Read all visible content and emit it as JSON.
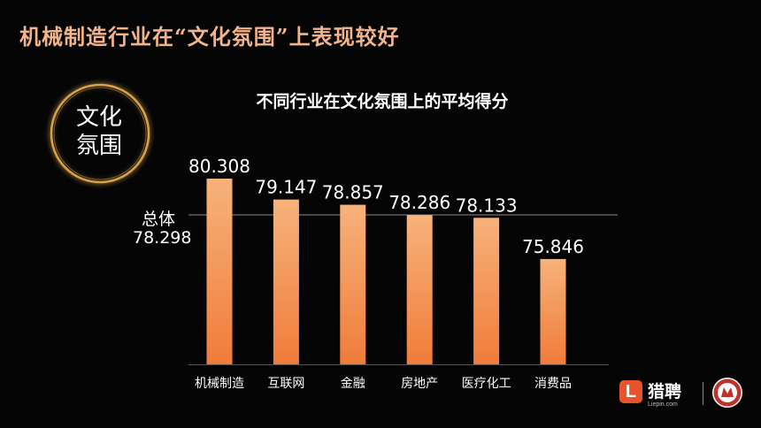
{
  "slide": {
    "title": "机械制造行业在“文化氛围”上表现较好",
    "badge_line1": "文化",
    "badge_line2": "氛围"
  },
  "logo": {
    "name": "猎聘",
    "sub": "Liepin.com"
  },
  "colors": {
    "title": "#f2b48a",
    "bar_top": "#f7b27a",
    "bar_bottom": "#f07c3a",
    "reference_line": "#8a8a8a",
    "axis": "#555555",
    "label": "#ffffff",
    "badge_ring": "#d9a24a",
    "brand_red": "#c0312b"
  },
  "chart_data": {
    "type": "bar",
    "title": "不同行业在文化氛围上的平均得分",
    "categories": [
      "机械制造",
      "互联网",
      "金融",
      "房地产",
      "医疗化工",
      "消费品"
    ],
    "values": [
      80.308,
      79.147,
      78.857,
      78.286,
      78.133,
      75.846
    ],
    "value_labels": [
      "80.308",
      "79.147",
      "78.857",
      "78.286",
      "78.133",
      "75.846"
    ],
    "reference_line": {
      "label": "总体",
      "value": 78.298,
      "value_label": "78.298"
    },
    "ylim": [
      70,
      81.5
    ],
    "xlabel": "",
    "ylabel": "",
    "grid": false,
    "legend": "none"
  }
}
